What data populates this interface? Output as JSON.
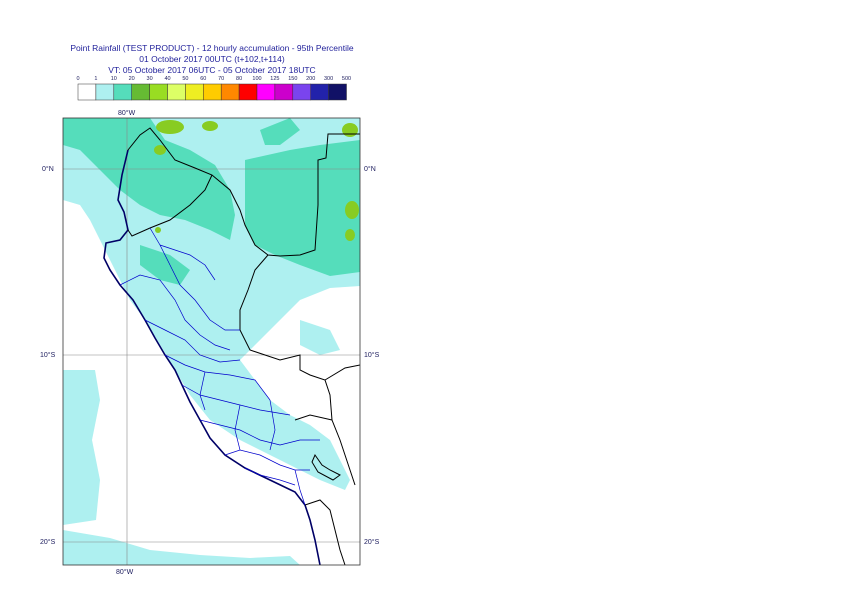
{
  "title": {
    "line1": "Point Rainfall (TEST PRODUCT) - 12 hourly accumulation - 95th Percentile",
    "line2": "01 October 2017 00UTC (t+102,t+114)",
    "line3": "VT: 05 October 2017 06UTC - 05 October 2017 18UTC"
  },
  "legend": {
    "thresholds": [
      "0",
      "1",
      "10",
      "20",
      "30",
      "40",
      "50",
      "60",
      "70",
      "80",
      "100",
      "125",
      "150",
      "200",
      "300",
      "500"
    ],
    "colors": [
      "#ffffff",
      "#aef0f0",
      "#55ddbb",
      "#66bb33",
      "#99dd22",
      "#ddff66",
      "#eeee22",
      "#ffcc00",
      "#ff8800",
      "#ff0000",
      "#ff00ff",
      "#cc00cc",
      "#7a44ee",
      "#2222aa",
      "#111166"
    ]
  },
  "map": {
    "lon_label_top": "80°W",
    "lon_label_bottom": "80°W",
    "lat_labels": [
      "0°N",
      "10°S",
      "20°S"
    ]
  },
  "colors": {
    "light_rain": "#aef0f0",
    "moderate_rain": "#55ddbb",
    "heavy_rain": "#88cc22",
    "coast": "#000066",
    "borders": "#0000cc",
    "grid": "#888888"
  }
}
